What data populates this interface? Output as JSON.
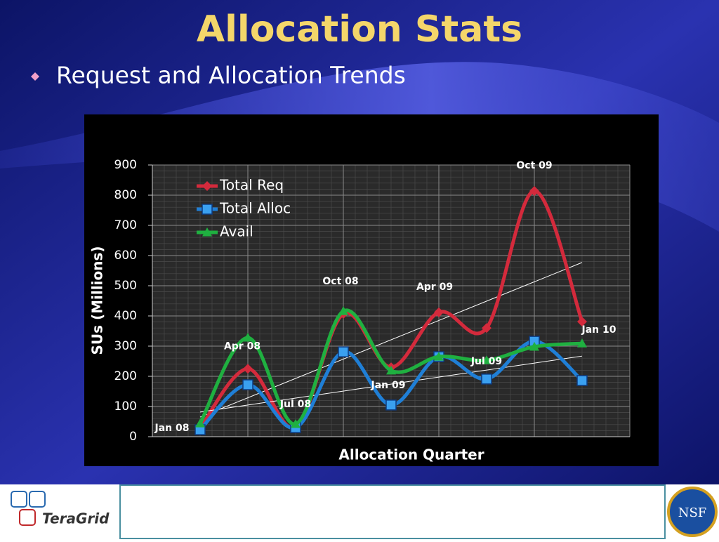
{
  "slide": {
    "title": "Allocation Stats",
    "bullet": "Request and Allocation Trends",
    "footer_logo": "TeraGrid",
    "footer_badge": "NSF"
  },
  "chart_data": {
    "type": "line",
    "x_label": "Allocation Quarter",
    "y_label": "SUs (Millions)",
    "categories": [
      "Jan 08",
      "Apr 08",
      "Jul 08",
      "Oct 08",
      "Jan 09",
      "Apr 09",
      "Jul 09",
      "Oct 09",
      "Jan 10"
    ],
    "series": [
      {
        "name": "Total Req",
        "color": "#d42a3c",
        "marker": "diamond",
        "trendline": true,
        "values": [
          28,
          225,
          32,
          407,
          230,
          412,
          360,
          814,
          381
        ]
      },
      {
        "name": "Total Alloc",
        "color": "#1f7fd6",
        "marker": "square",
        "trendline": true,
        "values": [
          23,
          172,
          30,
          281,
          105,
          265,
          191,
          316,
          186
        ]
      },
      {
        "name": "Avail",
        "color": "#1fb040",
        "marker": "triangle",
        "trendline": false,
        "values": [
          44,
          328,
          42,
          416,
          219,
          265,
          253,
          298,
          309
        ]
      }
    ],
    "ylim": [
      0,
      900
    ],
    "yticks": [
      0,
      100,
      200,
      300,
      400,
      500,
      600,
      700,
      800,
      900
    ],
    "grid": true,
    "legend": "top-left"
  }
}
